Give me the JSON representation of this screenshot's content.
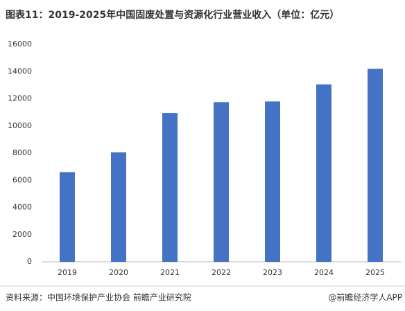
{
  "chart_data": {
    "type": "bar",
    "title": "图表11：2019-2025年中国固废处置与资源化行业营业收入（单位：亿元）",
    "categories": [
      "2019",
      "2020",
      "2021",
      "2022",
      "2023",
      "2024",
      "2025"
    ],
    "values": [
      6600,
      8050,
      10950,
      11750,
      11800,
      13050,
      14200
    ],
    "color": "#4472c4",
    "ylim": [
      0,
      16000
    ],
    "yticks": [
      0,
      2000,
      4000,
      6000,
      8000,
      10000,
      12000,
      14000,
      16000
    ],
    "grid": false,
    "source": "资料来源：中国环境保护产业协会  前瞻产业研究院",
    "brand": "@前瞻经济学人APP"
  }
}
